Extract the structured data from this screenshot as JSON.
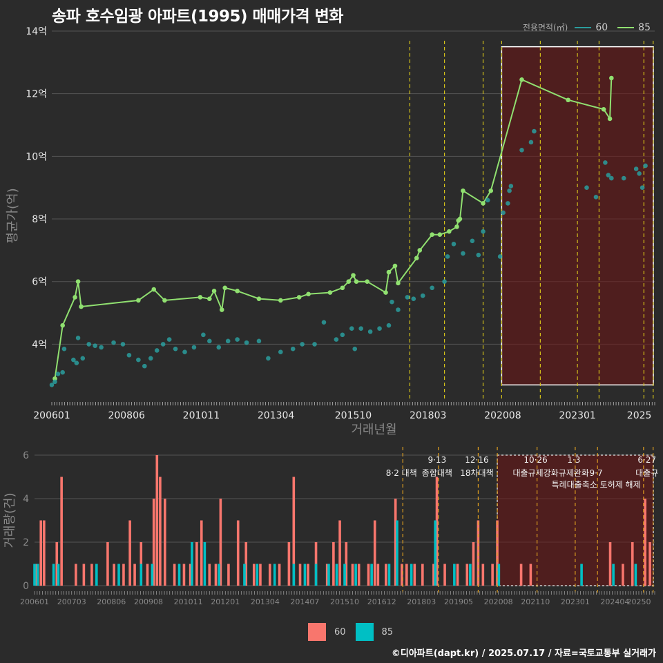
{
  "title": "송파 호수임광 아파트(1995) 매매가격 변화",
  "caption": "©디아파트(dapt.kr) / 2025.07.17 / 자료=국토교통부 실거래가",
  "colors": {
    "bg": "#2b2b2b",
    "grid": "#555555",
    "line60": "#2a9d9d",
    "line85": "#90e070",
    "bar60": "#f8766d",
    "bar85": "#00bfc4",
    "policy": "#d4c21a",
    "policy_vol": "#e0a020",
    "highlight_fill": "rgba(110,20,20,0.55)"
  },
  "legend_top": {
    "title": "전용면적(㎡)",
    "items": [
      "60",
      "85"
    ]
  },
  "legend_bottom": {
    "items": [
      "60",
      "85"
    ]
  },
  "chart_data": [
    {
      "type": "line",
      "title": "송파 호수임광 아파트(1995) 매매가격 변화",
      "xlabel": "거래년월",
      "ylabel": "평균가(억)",
      "x_ticks": [
        "200601",
        "200806",
        "201011",
        "201304",
        "201510",
        "201803",
        "202008",
        "202301",
        "2025"
      ],
      "y_ticks": [
        "4억",
        "6억",
        "8억",
        "10억",
        "12억",
        "14억"
      ],
      "ylim": [
        2.2,
        14
      ],
      "xlim": [
        2006.0,
        2025.5
      ],
      "policy_lines": [
        2017.58,
        2018.7,
        2019.95,
        2020.55,
        2021.8,
        2023.0,
        2023.7,
        2025.15,
        2025.45
      ],
      "highlight_years": [
        2020.55,
        2025.5
      ],
      "highlight_price": [
        2.7,
        13.5
      ],
      "series": [
        {
          "name": "85",
          "points": [
            [
              2006.1,
              2.9
            ],
            [
              2006.35,
              4.6
            ],
            [
              2006.75,
              5.5
            ],
            [
              2006.85,
              6.0
            ],
            [
              2006.95,
              5.2
            ],
            [
              2008.8,
              5.4
            ],
            [
              2009.3,
              5.75
            ],
            [
              2009.65,
              5.4
            ],
            [
              2010.8,
              5.5
            ],
            [
              2011.1,
              5.45
            ],
            [
              2011.25,
              5.7
            ],
            [
              2011.5,
              5.1
            ],
            [
              2011.6,
              5.8
            ],
            [
              2012.0,
              5.7
            ],
            [
              2012.7,
              5.45
            ],
            [
              2013.4,
              5.4
            ],
            [
              2014.0,
              5.5
            ],
            [
              2014.3,
              5.6
            ],
            [
              2015.0,
              5.65
            ],
            [
              2015.4,
              5.8
            ],
            [
              2015.6,
              6.0
            ],
            [
              2015.75,
              6.2
            ],
            [
              2015.85,
              6.0
            ],
            [
              2016.2,
              6.0
            ],
            [
              2016.8,
              5.65
            ],
            [
              2016.9,
              6.3
            ],
            [
              2017.1,
              6.5
            ],
            [
              2017.2,
              5.95
            ],
            [
              2017.8,
              6.75
            ],
            [
              2017.9,
              7.0
            ],
            [
              2018.3,
              7.5
            ],
            [
              2018.55,
              7.5
            ],
            [
              2018.85,
              7.6
            ],
            [
              2019.1,
              7.75
            ],
            [
              2019.15,
              7.95
            ],
            [
              2019.2,
              8.0
            ],
            [
              2019.3,
              8.9
            ],
            [
              2019.95,
              8.5
            ],
            [
              2020.2,
              8.9
            ],
            [
              2021.2,
              12.45
            ],
            [
              2022.7,
              11.8
            ],
            [
              2023.85,
              11.5
            ],
            [
              2024.05,
              11.2
            ],
            [
              2024.1,
              12.5
            ]
          ]
        },
        {
          "name": "60",
          "points": [
            [
              2006.0,
              2.7
            ],
            [
              2006.1,
              2.8
            ],
            [
              2006.2,
              3.05
            ],
            [
              2006.35,
              3.1
            ],
            [
              2006.4,
              3.85
            ],
            [
              2006.7,
              3.5
            ],
            [
              2006.8,
              3.4
            ],
            [
              2006.85,
              4.2
            ],
            [
              2007.0,
              3.55
            ],
            [
              2007.2,
              4.0
            ],
            [
              2007.4,
              3.95
            ],
            [
              2007.6,
              3.9
            ],
            [
              2008.0,
              4.05
            ],
            [
              2008.3,
              4.0
            ],
            [
              2008.5,
              3.65
            ],
            [
              2008.8,
              3.5
            ],
            [
              2009.0,
              3.3
            ],
            [
              2009.2,
              3.55
            ],
            [
              2009.4,
              3.8
            ],
            [
              2009.6,
              4.0
            ],
            [
              2009.8,
              4.15
            ],
            [
              2010.0,
              3.85
            ],
            [
              2010.3,
              3.75
            ],
            [
              2010.6,
              3.9
            ],
            [
              2010.9,
              4.3
            ],
            [
              2011.1,
              4.1
            ],
            [
              2011.4,
              3.9
            ],
            [
              2011.7,
              4.1
            ],
            [
              2012.0,
              4.15
            ],
            [
              2012.3,
              4.05
            ],
            [
              2012.7,
              4.1
            ],
            [
              2013.0,
              3.55
            ],
            [
              2013.4,
              3.75
            ],
            [
              2013.8,
              3.85
            ],
            [
              2014.1,
              4.0
            ],
            [
              2014.5,
              4.0
            ],
            [
              2014.8,
              4.7
            ],
            [
              2015.2,
              4.15
            ],
            [
              2015.4,
              4.3
            ],
            [
              2015.7,
              4.5
            ],
            [
              2015.8,
              3.85
            ],
            [
              2016.0,
              4.5
            ],
            [
              2016.3,
              4.4
            ],
            [
              2016.6,
              4.5
            ],
            [
              2016.9,
              4.6
            ],
            [
              2017.0,
              5.35
            ],
            [
              2017.2,
              5.1
            ],
            [
              2017.5,
              5.5
            ],
            [
              2017.7,
              5.45
            ],
            [
              2018.0,
              5.55
            ],
            [
              2018.3,
              5.8
            ],
            [
              2018.7,
              6.0
            ],
            [
              2018.8,
              6.8
            ],
            [
              2019.0,
              7.2
            ],
            [
              2019.3,
              6.9
            ],
            [
              2019.6,
              7.3
            ],
            [
              2019.8,
              6.85
            ],
            [
              2019.95,
              7.6
            ],
            [
              2020.1,
              8.6
            ],
            [
              2020.5,
              6.8
            ],
            [
              2020.6,
              8.2
            ],
            [
              2020.75,
              8.5
            ],
            [
              2020.8,
              8.9
            ],
            [
              2020.85,
              9.05
            ],
            [
              2021.2,
              10.2
            ],
            [
              2021.5,
              10.45
            ],
            [
              2021.6,
              10.8
            ],
            [
              2023.3,
              9.0
            ],
            [
              2023.6,
              8.7
            ],
            [
              2023.9,
              9.8
            ],
            [
              2024.0,
              9.4
            ],
            [
              2024.1,
              9.3
            ],
            [
              2024.5,
              9.3
            ],
            [
              2024.9,
              9.6
            ],
            [
              2025.0,
              9.45
            ],
            [
              2025.1,
              9.0
            ],
            [
              2025.2,
              9.7
            ]
          ]
        }
      ]
    },
    {
      "type": "bar",
      "title": "",
      "xlabel": "",
      "ylabel": "거래량(건)",
      "x_ticks": [
        "200601",
        "200703",
        "200806",
        "200908",
        "201011",
        "201201",
        "201304",
        "201407",
        "201510",
        "201612",
        "201803",
        "201905",
        "202008",
        "202110",
        "202301",
        "202404",
        "20250"
      ],
      "y_ticks": [
        "0",
        "2",
        "4",
        "6"
      ],
      "ylim": [
        0,
        6
      ],
      "xlim": [
        2006.0,
        2025.5
      ],
      "policy_lines": [
        2017.58,
        2018.7,
        2019.95,
        2020.55,
        2021.8,
        2023.0,
        2023.7,
        2025.15,
        2025.45
      ],
      "policy_labels": [
        {
          "x": 2017.58,
          "text": "8·2 대책",
          "row": 1
        },
        {
          "x": 2018.7,
          "text": "9·13",
          "row": 0
        },
        {
          "x": 2018.7,
          "text": "종합대책",
          "row": 1
        },
        {
          "x": 2019.95,
          "text": "12·16",
          "row": 0
        },
        {
          "x": 2019.95,
          "text": "18차대책",
          "row": 1
        },
        {
          "x": 2021.8,
          "text": "10·26",
          "row": 0
        },
        {
          "x": 2021.8,
          "text": "대출규제강화",
          "row": 1
        },
        {
          "x": 2023.0,
          "text": "1·3",
          "row": 0
        },
        {
          "x": 2023.0,
          "text": "규제완화",
          "row": 1
        },
        {
          "x": 2023.7,
          "text": "9·7",
          "row": 1
        },
        {
          "x": 2023.7,
          "text": "특례대출축소 토허제 해제",
          "row": 2
        },
        {
          "x": 2025.3,
          "text": "6·27",
          "row": 0
        },
        {
          "x": 2025.3,
          "text": "대출규",
          "row": 1
        }
      ],
      "highlight_years": [
        2020.55,
        2025.5
      ],
      "series": [
        {
          "name": "60",
          "bars": [
            [
              2006.05,
              1
            ],
            [
              2006.2,
              3
            ],
            [
              2006.3,
              3
            ],
            [
              2006.7,
              2
            ],
            [
              2006.85,
              5
            ],
            [
              2007.3,
              1
            ],
            [
              2007.55,
              1
            ],
            [
              2007.8,
              1
            ],
            [
              2008.3,
              2
            ],
            [
              2008.5,
              1
            ],
            [
              2008.8,
              1
            ],
            [
              2009.0,
              3
            ],
            [
              2009.15,
              1
            ],
            [
              2009.35,
              2
            ],
            [
              2009.55,
              1
            ],
            [
              2009.75,
              4
            ],
            [
              2009.85,
              6
            ],
            [
              2009.95,
              5
            ],
            [
              2010.1,
              4
            ],
            [
              2010.4,
              1
            ],
            [
              2010.7,
              1
            ],
            [
              2010.9,
              1
            ],
            [
              2011.1,
              2
            ],
            [
              2011.25,
              3
            ],
            [
              2011.5,
              1
            ],
            [
              2011.7,
              1
            ],
            [
              2011.85,
              4
            ],
            [
              2012.1,
              1
            ],
            [
              2012.4,
              3
            ],
            [
              2012.65,
              2
            ],
            [
              2012.9,
              1
            ],
            [
              2013.1,
              1
            ],
            [
              2013.4,
              1
            ],
            [
              2013.7,
              1
            ],
            [
              2014.0,
              2
            ],
            [
              2014.15,
              5
            ],
            [
              2014.35,
              1
            ],
            [
              2014.6,
              1
            ],
            [
              2014.85,
              2
            ],
            [
              2015.2,
              1
            ],
            [
              2015.4,
              2
            ],
            [
              2015.6,
              3
            ],
            [
              2015.8,
              2
            ],
            [
              2016.0,
              1
            ],
            [
              2016.2,
              1
            ],
            [
              2016.5,
              1
            ],
            [
              2016.7,
              3
            ],
            [
              2016.8,
              1
            ],
            [
              2017.05,
              1
            ],
            [
              2017.35,
              4
            ],
            [
              2017.55,
              1
            ],
            [
              2017.7,
              1
            ],
            [
              2017.95,
              1
            ],
            [
              2018.2,
              1
            ],
            [
              2018.55,
              1
            ],
            [
              2018.65,
              5
            ],
            [
              2018.9,
              1
            ],
            [
              2019.3,
              1
            ],
            [
              2019.6,
              1
            ],
            [
              2019.8,
              2
            ],
            [
              2019.95,
              3
            ],
            [
              2020.1,
              1
            ],
            [
              2020.4,
              1
            ],
            [
              2020.55,
              3
            ],
            [
              2021.3,
              1
            ],
            [
              2021.6,
              1
            ],
            [
              2024.1,
              2
            ],
            [
              2024.5,
              1
            ],
            [
              2024.8,
              2
            ],
            [
              2025.2,
              4
            ],
            [
              2025.35,
              2
            ]
          ]
        },
        {
          "name": "85",
          "bars": [
            [
              2006.0,
              1
            ],
            [
              2006.1,
              1
            ],
            [
              2006.6,
              1
            ],
            [
              2006.75,
              1
            ],
            [
              2007.95,
              1
            ],
            [
              2008.65,
              1
            ],
            [
              2009.35,
              1
            ],
            [
              2009.7,
              1
            ],
            [
              2010.55,
              1
            ],
            [
              2010.95,
              2
            ],
            [
              2011.35,
              2
            ],
            [
              2011.8,
              1
            ],
            [
              2012.6,
              1
            ],
            [
              2013.0,
              1
            ],
            [
              2013.55,
              1
            ],
            [
              2014.15,
              1
            ],
            [
              2014.5,
              1
            ],
            [
              2014.85,
              1
            ],
            [
              2015.25,
              1
            ],
            [
              2015.5,
              1
            ],
            [
              2015.75,
              1
            ],
            [
              2016.1,
              1
            ],
            [
              2016.6,
              1
            ],
            [
              2017.15,
              1
            ],
            [
              2017.4,
              3
            ],
            [
              2017.85,
              1
            ],
            [
              2018.6,
              3
            ],
            [
              2019.2,
              1
            ],
            [
              2019.7,
              1
            ],
            [
              2020.6,
              1
            ],
            [
              2023.2,
              1
            ],
            [
              2024.2,
              1
            ],
            [
              2024.9,
              1
            ]
          ]
        }
      ]
    }
  ]
}
